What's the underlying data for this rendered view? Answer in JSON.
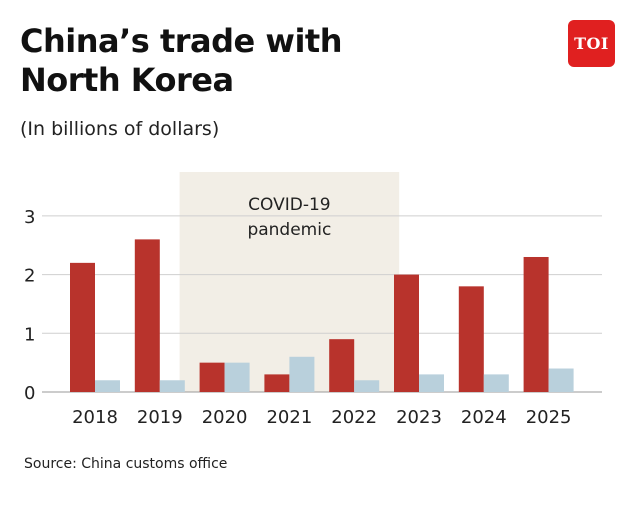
{
  "header": {
    "title_line1": "China’s trade with",
    "title_line2": "North Korea",
    "subtitle": "(In billions of dollars)",
    "logo_text": "TOI"
  },
  "footer": {
    "source": "Source: China customs office"
  },
  "colors": {
    "series_primary": "#b8332c",
    "series_secondary": "#b9d0dc",
    "covid_band": "#f2eee6",
    "grid": "#cfcfcf",
    "logo": "#e02020"
  },
  "chart_data": {
    "type": "bar",
    "categories": [
      "2018",
      "2019",
      "2020",
      "2021",
      "2022",
      "2023",
      "2024",
      "2025"
    ],
    "series": [
      {
        "values": [
          2.2,
          2.6,
          0.5,
          0.3,
          0.9,
          2.0,
          1.8,
          2.3
        ]
      },
      {
        "values": [
          0.2,
          0.2,
          0.5,
          0.6,
          0.2,
          0.3,
          0.3,
          0.4
        ]
      }
    ],
    "ylim": [
      0,
      3
    ],
    "yticks": [
      "0",
      "1",
      "2",
      "3"
    ],
    "grid": true,
    "annotation": {
      "line1": "COVID-19",
      "line2": "pandemic",
      "span_categories": [
        "2020",
        "2022"
      ]
    }
  }
}
